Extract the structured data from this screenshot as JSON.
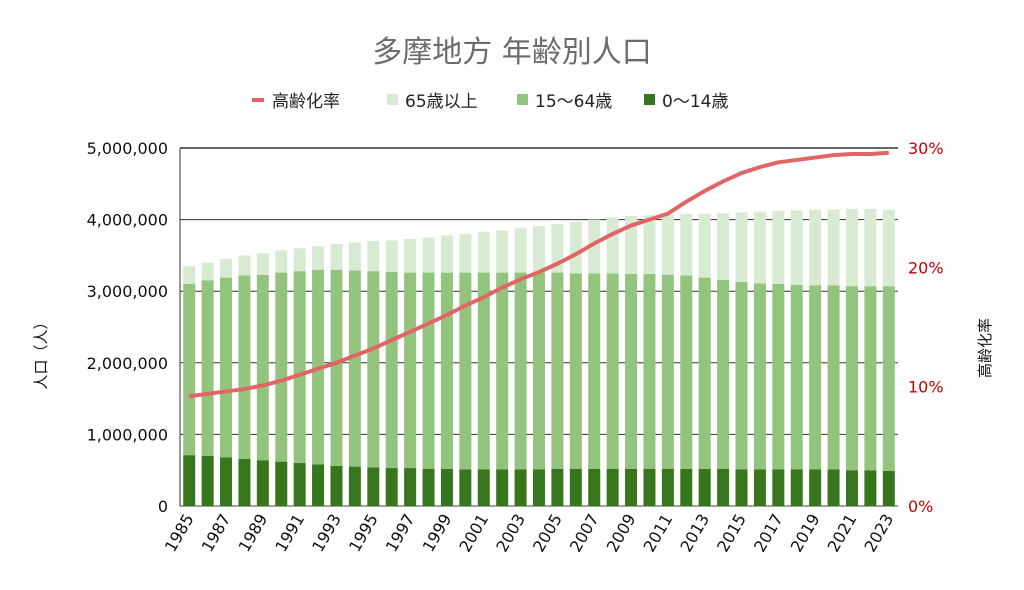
{
  "chart_data": {
    "type": "bar",
    "stacked": true,
    "title": "多摩地方 年齢別人口",
    "ylabel": "人口（人）",
    "y2label": "高齢化率",
    "ylim": [
      0,
      5000000
    ],
    "y2lim": [
      0,
      30
    ],
    "yticks": [
      "0",
      "1,000,000",
      "2,000,000",
      "3,000,000",
      "4,000,000",
      "5,000,000"
    ],
    "y2ticks": [
      "0%",
      "10%",
      "20%",
      "30%"
    ],
    "grid": true,
    "legend_position": "top",
    "categories": [
      1985,
      1986,
      1987,
      1988,
      1989,
      1990,
      1991,
      1992,
      1993,
      1994,
      1995,
      1996,
      1997,
      1998,
      1999,
      2000,
      2001,
      2002,
      2003,
      2004,
      2005,
      2006,
      2007,
      2008,
      2009,
      2010,
      2011,
      2012,
      2013,
      2014,
      2015,
      2016,
      2017,
      2018,
      2019,
      2020,
      2021,
      2022,
      2023
    ],
    "series": [
      {
        "name": "0〜14歳",
        "color": "#38761d",
        "values": [
          710000,
          700000,
          680000,
          660000,
          640000,
          620000,
          600000,
          580000,
          560000,
          550000,
          540000,
          530000,
          530000,
          520000,
          520000,
          510000,
          510000,
          510000,
          510000,
          510000,
          520000,
          520000,
          520000,
          520000,
          520000,
          520000,
          520000,
          520000,
          520000,
          520000,
          510000,
          510000,
          510000,
          510000,
          510000,
          510000,
          500000,
          500000,
          490000
        ]
      },
      {
        "name": "15〜64歳",
        "color": "#93c47d",
        "values": [
          2390000,
          2450000,
          2510000,
          2560000,
          2590000,
          2640000,
          2680000,
          2720000,
          2740000,
          2740000,
          2740000,
          2740000,
          2730000,
          2740000,
          2740000,
          2750000,
          2750000,
          2750000,
          2750000,
          2750000,
          2740000,
          2730000,
          2730000,
          2730000,
          2720000,
          2720000,
          2710000,
          2700000,
          2670000,
          2640000,
          2620000,
          2600000,
          2590000,
          2580000,
          2570000,
          2570000,
          2570000,
          2570000,
          2580000
        ]
      },
      {
        "name": "65歳以上",
        "color": "#d9ead3",
        "values": [
          250000,
          250000,
          260000,
          280000,
          300000,
          310000,
          320000,
          330000,
          360000,
          390000,
          420000,
          440000,
          470000,
          490000,
          520000,
          540000,
          570000,
          590000,
          620000,
          650000,
          680000,
          720000,
          750000,
          780000,
          810000,
          820000,
          840000,
          860000,
          890000,
          930000,
          970000,
          1000000,
          1020000,
          1040000,
          1060000,
          1060000,
          1080000,
          1080000,
          1070000
        ]
      },
      {
        "name": "高齢化率",
        "type": "line",
        "axis": "right",
        "color": "#e06666",
        "values": [
          9.2,
          9.4,
          9.6,
          9.8,
          10.1,
          10.5,
          11.0,
          11.5,
          12.0,
          12.6,
          13.2,
          13.9,
          14.6,
          15.3,
          16.0,
          16.8,
          17.5,
          18.3,
          19.0,
          19.6,
          20.3,
          21.1,
          22.0,
          22.8,
          23.5,
          24.0,
          24.5,
          25.5,
          26.4,
          27.2,
          27.9,
          28.4,
          28.8,
          29.0,
          29.2,
          29.4,
          29.5,
          29.5,
          29.6
        ]
      }
    ],
    "legend": [
      "高齢化率",
      "65歳以上",
      "15〜64歳",
      "0〜14歳"
    ]
  }
}
